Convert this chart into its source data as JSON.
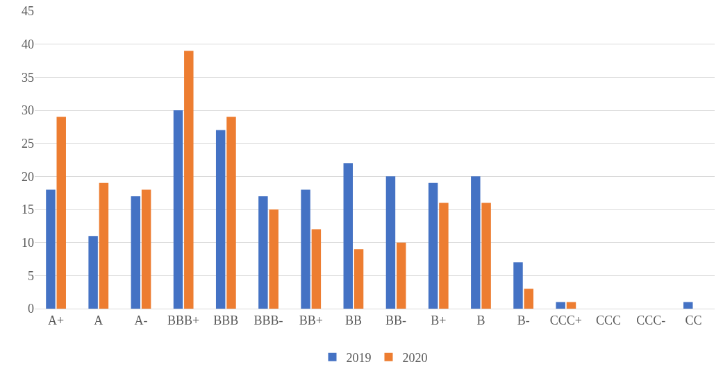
{
  "chart_data": {
    "type": "bar",
    "categories": [
      "A+",
      "A",
      "A-",
      "BBB+",
      "BBB",
      "BBB-",
      "BB+",
      "BB",
      "BB-",
      "B+",
      "B",
      "B-",
      "CCC+",
      "CCC",
      "CCC-",
      "CC"
    ],
    "series": [
      {
        "name": "2019",
        "color": "#4472c4",
        "values": [
          18,
          11,
          17,
          30,
          27,
          17,
          18,
          22,
          20,
          19,
          20,
          7,
          1,
          0,
          0,
          1
        ]
      },
      {
        "name": "2020",
        "color": "#ed7d31",
        "values": [
          29,
          19,
          18,
          39,
          29,
          15,
          12,
          9,
          10,
          16,
          16,
          3,
          1,
          0,
          0,
          0
        ]
      }
    ],
    "ylim": [
      0,
      45
    ],
    "yticks": [
      0,
      5,
      10,
      15,
      20,
      25,
      30,
      35,
      40,
      45
    ],
    "grid": "y",
    "legend": "bottom"
  }
}
